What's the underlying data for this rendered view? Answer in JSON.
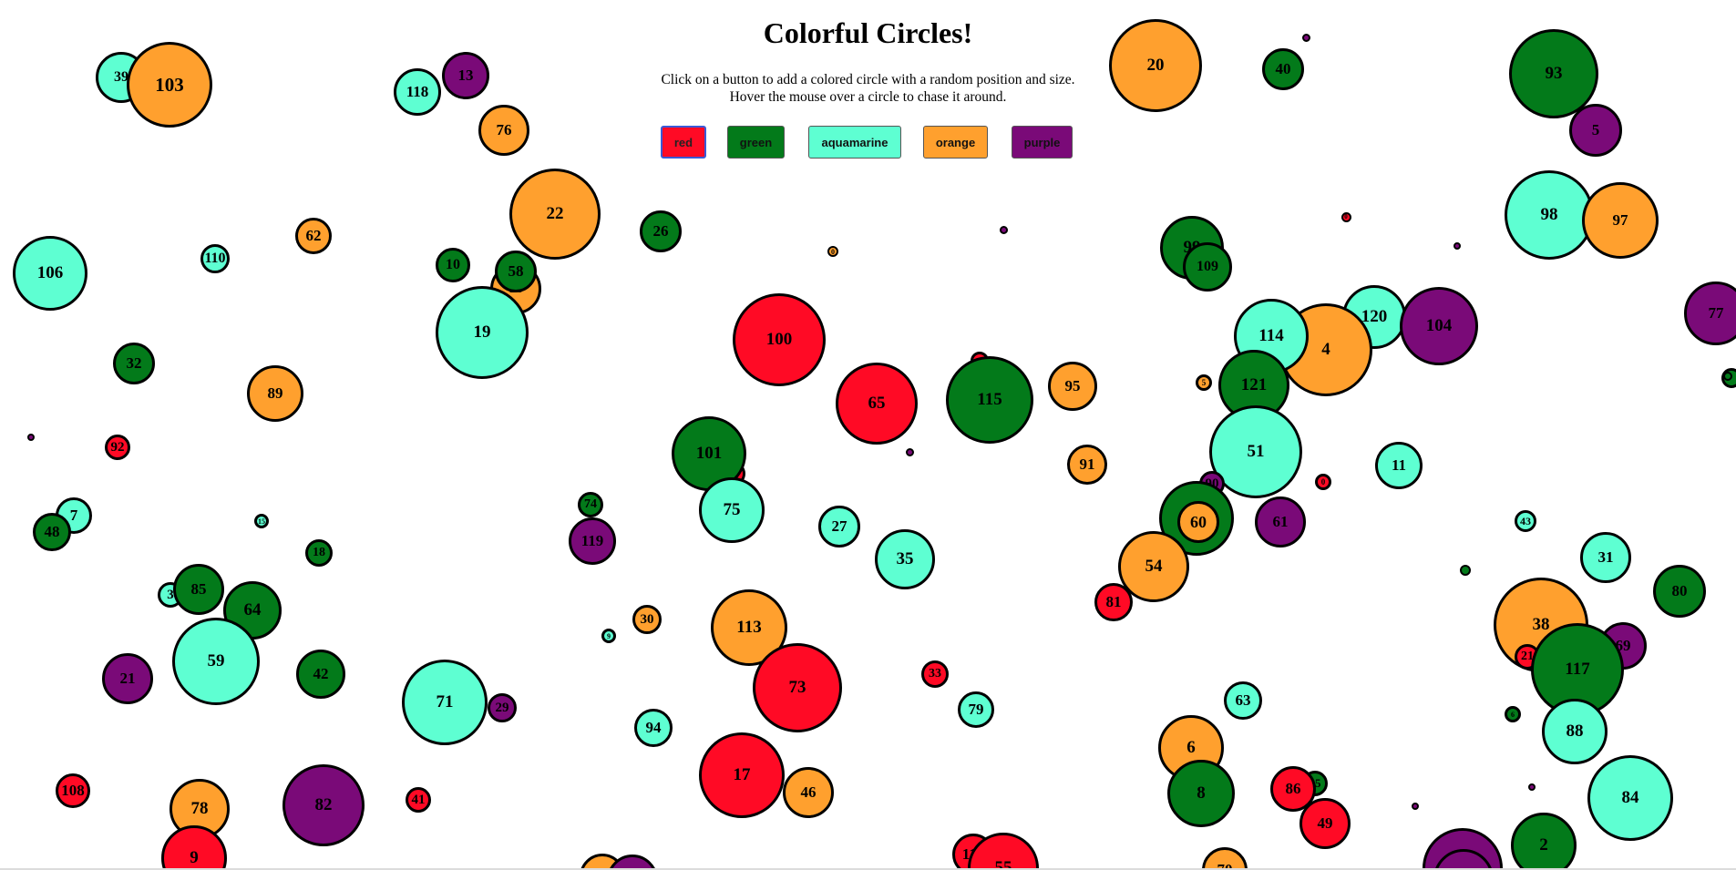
{
  "page": {
    "title": "Colorful Circles!",
    "instructions": [
      "Click on a button to add a colored circle with a random position and size.",
      "Hover the mouse over a circle to chase it around."
    ]
  },
  "colors": {
    "red": "#ff0a25",
    "green": "#037a1a",
    "aquamarine": "#5effd2",
    "orange": "#ffa02e",
    "purple": "#7a0a78"
  },
  "buttons": [
    {
      "label": "red",
      "color": "red",
      "focused": true
    },
    {
      "label": "green",
      "color": "green"
    },
    {
      "label": "aquamarine",
      "color": "aquamarine"
    },
    {
      "label": "orange",
      "color": "orange"
    },
    {
      "label": "purple",
      "color": "purple"
    }
  ],
  "circles": [
    {
      "label": "39",
      "color": "aquamarine"
    },
    {
      "label": "103",
      "color": "orange"
    },
    {
      "label": "118",
      "color": "aquamarine"
    },
    {
      "label": "13",
      "color": "purple"
    },
    {
      "label": "76",
      "color": "orange"
    },
    {
      "label": "20",
      "color": "orange"
    },
    {
      "label": "",
      "color": "purple"
    },
    {
      "label": "40",
      "color": "green"
    },
    {
      "label": "93",
      "color": "green"
    },
    {
      "label": "5",
      "color": "purple"
    },
    {
      "label": "22",
      "color": "orange"
    },
    {
      "label": "26",
      "color": "green"
    },
    {
      "label": "62",
      "color": "orange"
    },
    {
      "label": "110",
      "color": "aquamarine"
    },
    {
      "label": "106",
      "color": "aquamarine"
    },
    {
      "label": "10",
      "color": "green"
    },
    {
      "label": "16",
      "color": "orange"
    },
    {
      "label": "58",
      "color": "green"
    },
    {
      "label": "19",
      "color": "aquamarine"
    },
    {
      "label": "0",
      "color": "orange"
    },
    {
      "label": "",
      "color": "purple"
    },
    {
      "label": "0",
      "color": "red"
    },
    {
      "label": "",
      "color": "purple"
    },
    {
      "label": "98",
      "color": "aquamarine"
    },
    {
      "label": "97",
      "color": "orange"
    },
    {
      "label": "77",
      "color": "purple"
    },
    {
      "label": "99",
      "color": "green"
    },
    {
      "label": "109",
      "color": "green"
    },
    {
      "label": "100",
      "color": "red"
    },
    {
      "label": "120",
      "color": "aquamarine"
    },
    {
      "label": "104",
      "color": "purple"
    },
    {
      "label": "4",
      "color": "orange"
    },
    {
      "label": "114",
      "color": "aquamarine"
    },
    {
      "label": "32",
      "color": "green"
    },
    {
      "label": "89",
      "color": "orange"
    },
    {
      "label": "65",
      "color": "red"
    },
    {
      "label": "",
      "color": "red"
    },
    {
      "label": "115",
      "color": "green"
    },
    {
      "label": "95",
      "color": "orange"
    },
    {
      "label": "5",
      "color": "orange"
    },
    {
      "label": "121",
      "color": "green"
    },
    {
      "label": "",
      "color": "green"
    },
    {
      "label": "",
      "color": "purple"
    },
    {
      "label": "92",
      "color": "red"
    },
    {
      "label": "",
      "color": "purple"
    },
    {
      "label": "51",
      "color": "aquamarine"
    },
    {
      "label": "91",
      "color": "orange"
    },
    {
      "label": "11",
      "color": "aquamarine"
    },
    {
      "label": "0",
      "color": "red"
    },
    {
      "label": "",
      "color": "red"
    },
    {
      "label": "101",
      "color": "green"
    },
    {
      "label": "90",
      "color": "purple"
    },
    {
      "label": "74",
      "color": "green"
    },
    {
      "label": "75",
      "color": "aquamarine"
    },
    {
      "label": "7",
      "color": "aquamarine"
    },
    {
      "label": "48",
      "color": "green"
    },
    {
      "label": "15",
      "color": "aquamarine"
    },
    {
      "label": "119",
      "color": "purple"
    },
    {
      "label": "27",
      "color": "aquamarine"
    },
    {
      "label": "57",
      "color": "green"
    },
    {
      "label": "60",
      "color": "orange"
    },
    {
      "label": "61",
      "color": "purple"
    },
    {
      "label": "43",
      "color": "aquamarine"
    },
    {
      "label": "18",
      "color": "green"
    },
    {
      "label": "35",
      "color": "aquamarine"
    },
    {
      "label": "54",
      "color": "orange"
    },
    {
      "label": "31",
      "color": "aquamarine"
    },
    {
      "label": "",
      "color": "green"
    },
    {
      "label": "80",
      "color": "green"
    },
    {
      "label": "3",
      "color": "aquamarine"
    },
    {
      "label": "85",
      "color": "green"
    },
    {
      "label": "64",
      "color": "green"
    },
    {
      "label": "81",
      "color": "red"
    },
    {
      "label": "38",
      "color": "orange"
    },
    {
      "label": "30",
      "color": "orange"
    },
    {
      "label": "9",
      "color": "aquamarine"
    },
    {
      "label": "113",
      "color": "orange"
    },
    {
      "label": "69",
      "color": "purple"
    },
    {
      "label": "59",
      "color": "aquamarine"
    },
    {
      "label": "21",
      "color": "red"
    },
    {
      "label": "117",
      "color": "green"
    },
    {
      "label": "42",
      "color": "green"
    },
    {
      "label": "21",
      "color": "purple"
    },
    {
      "label": "73",
      "color": "red"
    },
    {
      "label": "33",
      "color": "red"
    },
    {
      "label": "71",
      "color": "aquamarine"
    },
    {
      "label": "29",
      "color": "purple"
    },
    {
      "label": "79",
      "color": "aquamarine"
    },
    {
      "label": "63",
      "color": "aquamarine"
    },
    {
      "label": "6",
      "color": "green"
    },
    {
      "label": "94",
      "color": "aquamarine"
    },
    {
      "label": "88",
      "color": "aquamarine"
    },
    {
      "label": "6",
      "color": "orange"
    },
    {
      "label": "17",
      "color": "red"
    },
    {
      "label": "",
      "color": "purple"
    },
    {
      "label": "46",
      "color": "orange"
    },
    {
      "label": "108",
      "color": "red"
    },
    {
      "label": "78",
      "color": "orange"
    },
    {
      "label": "82",
      "color": "purple"
    },
    {
      "label": "41",
      "color": "red"
    },
    {
      "label": "8",
      "color": "green"
    },
    {
      "label": "15",
      "color": "green"
    },
    {
      "label": "86",
      "color": "red"
    },
    {
      "label": "",
      "color": "purple"
    },
    {
      "label": "84",
      "color": "aquamarine"
    },
    {
      "label": "49",
      "color": "red"
    },
    {
      "label": "9",
      "color": "red"
    },
    {
      "label": "2",
      "color": "green"
    },
    {
      "label": "116",
      "color": "red"
    },
    {
      "label": "55",
      "color": "red"
    },
    {
      "label": "",
      "color": "purple"
    },
    {
      "label": "70",
      "color": "orange"
    },
    {
      "label": "",
      "color": "orange"
    },
    {
      "label": "",
      "color": "purple"
    },
    {
      "label": "",
      "color": "green"
    },
    {
      "label": "",
      "color": "purple"
    },
    {
      "label": "",
      "color": "purple"
    }
  ]
}
